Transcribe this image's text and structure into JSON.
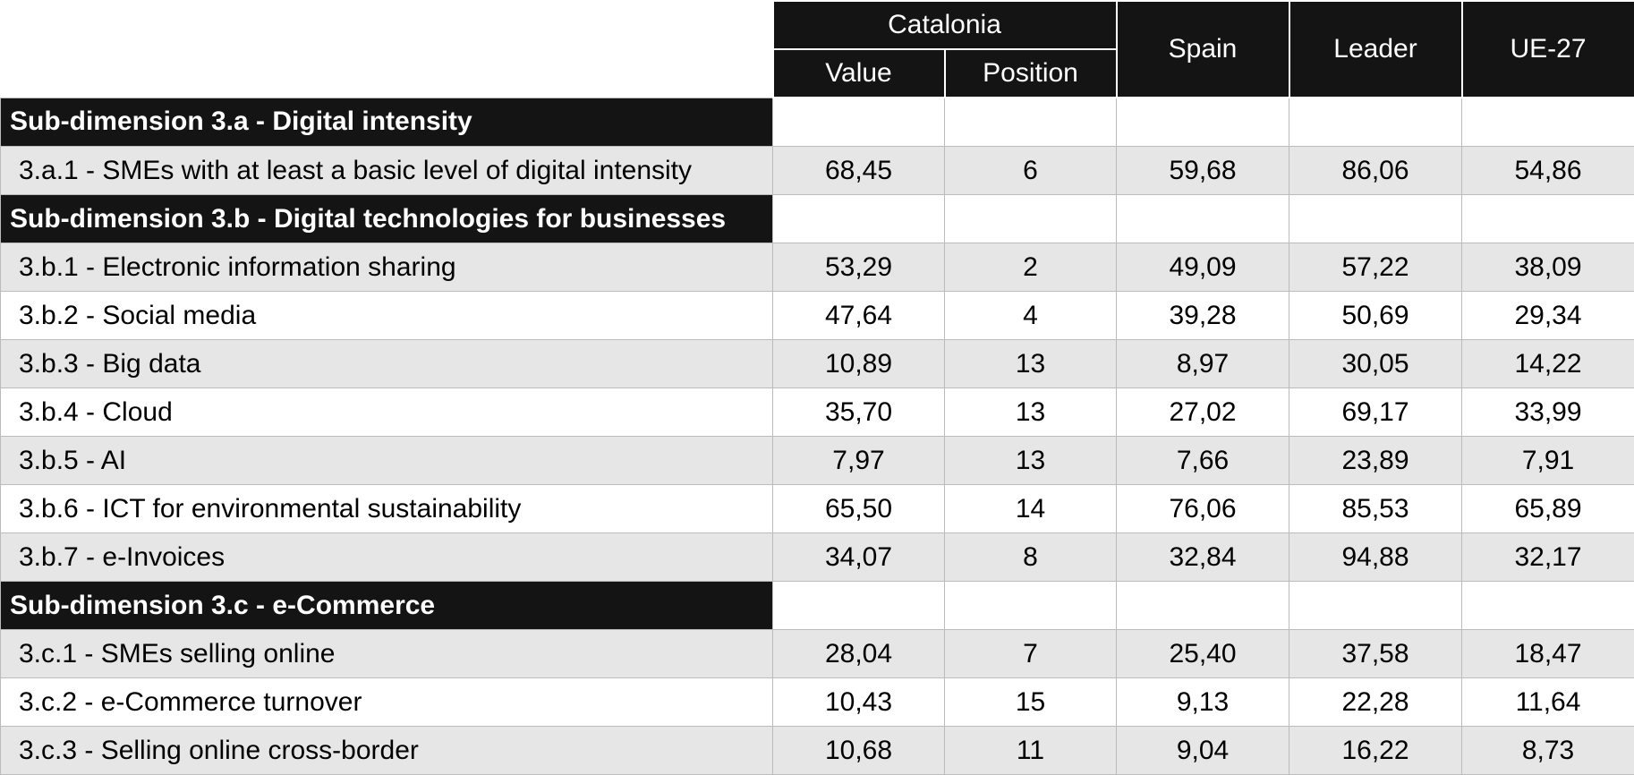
{
  "table": {
    "header": {
      "group": "Catalonia",
      "value": "Value",
      "position": "Position",
      "spain": "Spain",
      "leader": "Leader",
      "eu": "UE-27"
    },
    "rows": [
      {
        "section": "Sub-dimension 3.a - Digital intensity"
      },
      {
        "label": "3.a.1 - SMEs with at least a basic level of digital intensity",
        "cells": [
          "68,45",
          "6",
          "59,68",
          "86,06",
          "54,86"
        ]
      },
      {
        "section": "Sub-dimension 3.b - Digital technologies for businesses"
      },
      {
        "label": "3.b.1 - Electronic information sharing",
        "cells": [
          "53,29",
          "2",
          "49,09",
          "57,22",
          "38,09"
        ]
      },
      {
        "label": "3.b.2 - Social media",
        "cells": [
          "47,64",
          "4",
          "39,28",
          "50,69",
          "29,34"
        ]
      },
      {
        "label": "3.b.3 - Big data",
        "cells": [
          "10,89",
          "13",
          "8,97",
          "30,05",
          "14,22"
        ]
      },
      {
        "label": "3.b.4 - Cloud",
        "cells": [
          "35,70",
          "13",
          "27,02",
          "69,17",
          "33,99"
        ]
      },
      {
        "label": "3.b.5 - AI",
        "cells": [
          "7,97",
          "13",
          "7,66",
          "23,89",
          "7,91"
        ]
      },
      {
        "label": "3.b.6 - ICT for environmental sustainability",
        "cells": [
          "65,50",
          "14",
          "76,06",
          "85,53",
          "65,89"
        ]
      },
      {
        "label": "3.b.7 - e-Invoices",
        "cells": [
          "34,07",
          "8",
          "32,84",
          "94,88",
          "32,17"
        ]
      },
      {
        "section": "Sub-dimension 3.c - e-Commerce"
      },
      {
        "label": "3.c.1 - SMEs selling online",
        "cells": [
          "28,04",
          "7",
          "25,40",
          "37,58",
          "18,47"
        ]
      },
      {
        "label": "3.c.2 - e-Commerce turnover",
        "cells": [
          "10,43",
          "15",
          "9,13",
          "22,28",
          "11,64"
        ]
      },
      {
        "label": "3.c.3 - Selling online cross-border",
        "cells": [
          "10,68",
          "11",
          "9,04",
          "16,22",
          "8,73"
        ]
      }
    ]
  }
}
